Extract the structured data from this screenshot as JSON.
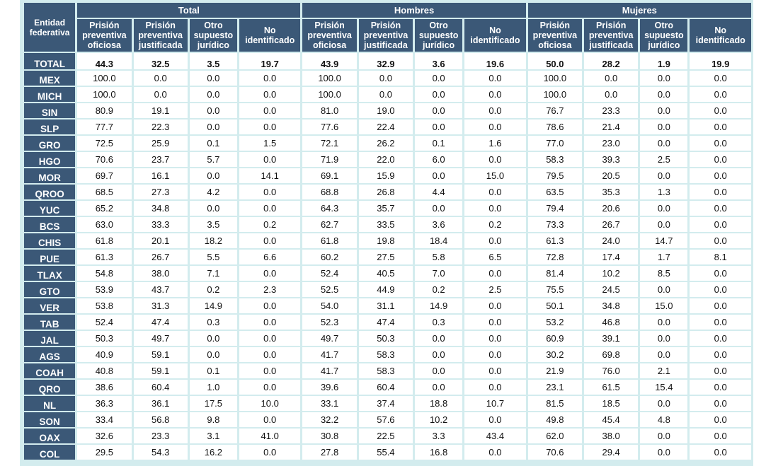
{
  "header": {
    "entity_label": "Entidad\nfederativa",
    "groups": [
      "Total",
      "Hombres",
      "Mujeres"
    ],
    "subcolumns": [
      "Prisión\npreventiva\noficiosa",
      "Prisión\npreventiva\njustificada",
      "Otro\nsupuesto\njurídico",
      "No\nidentificado"
    ]
  },
  "rows": [
    {
      "state": "TOTAL",
      "values": [
        "44.3",
        "32.5",
        "3.5",
        "19.7",
        "43.9",
        "32.9",
        "3.6",
        "19.6",
        "50.0",
        "28.2",
        "1.9",
        "19.9"
      ]
    },
    {
      "state": "MEX",
      "values": [
        "100.0",
        "0.0",
        "0.0",
        "0.0",
        "100.0",
        "0.0",
        "0.0",
        "0.0",
        "100.0",
        "0.0",
        "0.0",
        "0.0"
      ]
    },
    {
      "state": "MICH",
      "values": [
        "100.0",
        "0.0",
        "0.0",
        "0.0",
        "100.0",
        "0.0",
        "0.0",
        "0.0",
        "100.0",
        "0.0",
        "0.0",
        "0.0"
      ]
    },
    {
      "state": "SIN",
      "values": [
        "80.9",
        "19.1",
        "0.0",
        "0.0",
        "81.0",
        "19.0",
        "0.0",
        "0.0",
        "76.7",
        "23.3",
        "0.0",
        "0.0"
      ]
    },
    {
      "state": "SLP",
      "values": [
        "77.7",
        "22.3",
        "0.0",
        "0.0",
        "77.6",
        "22.4",
        "0.0",
        "0.0",
        "78.6",
        "21.4",
        "0.0",
        "0.0"
      ]
    },
    {
      "state": "GRO",
      "values": [
        "72.5",
        "25.9",
        "0.1",
        "1.5",
        "72.1",
        "26.2",
        "0.1",
        "1.6",
        "77.0",
        "23.0",
        "0.0",
        "0.0"
      ]
    },
    {
      "state": "HGO",
      "values": [
        "70.6",
        "23.7",
        "5.7",
        "0.0",
        "71.9",
        "22.0",
        "6.0",
        "0.0",
        "58.3",
        "39.3",
        "2.5",
        "0.0"
      ]
    },
    {
      "state": "MOR",
      "values": [
        "69.7",
        "16.1",
        "0.0",
        "14.1",
        "69.1",
        "15.9",
        "0.0",
        "15.0",
        "79.5",
        "20.5",
        "0.0",
        "0.0"
      ]
    },
    {
      "state": "QROO",
      "values": [
        "68.5",
        "27.3",
        "4.2",
        "0.0",
        "68.8",
        "26.8",
        "4.4",
        "0.0",
        "63.5",
        "35.3",
        "1.3",
        "0.0"
      ]
    },
    {
      "state": "YUC",
      "values": [
        "65.2",
        "34.8",
        "0.0",
        "0.0",
        "64.3",
        "35.7",
        "0.0",
        "0.0",
        "79.4",
        "20.6",
        "0.0",
        "0.0"
      ]
    },
    {
      "state": "BCS",
      "values": [
        "63.0",
        "33.3",
        "3.5",
        "0.2",
        "62.7",
        "33.5",
        "3.6",
        "0.2",
        "73.3",
        "26.7",
        "0.0",
        "0.0"
      ]
    },
    {
      "state": "CHIS",
      "values": [
        "61.8",
        "20.1",
        "18.2",
        "0.0",
        "61.8",
        "19.8",
        "18.4",
        "0.0",
        "61.3",
        "24.0",
        "14.7",
        "0.0"
      ]
    },
    {
      "state": "PUE",
      "values": [
        "61.3",
        "26.7",
        "5.5",
        "6.6",
        "60.2",
        "27.5",
        "5.8",
        "6.5",
        "72.8",
        "17.4",
        "1.7",
        "8.1"
      ]
    },
    {
      "state": "TLAX",
      "values": [
        "54.8",
        "38.0",
        "7.1",
        "0.0",
        "52.4",
        "40.5",
        "7.0",
        "0.0",
        "81.4",
        "10.2",
        "8.5",
        "0.0"
      ]
    },
    {
      "state": "GTO",
      "values": [
        "53.9",
        "43.7",
        "0.2",
        "2.3",
        "52.5",
        "44.9",
        "0.2",
        "2.5",
        "75.5",
        "24.5",
        "0.0",
        "0.0"
      ]
    },
    {
      "state": "VER",
      "values": [
        "53.8",
        "31.3",
        "14.9",
        "0.0",
        "54.0",
        "31.1",
        "14.9",
        "0.0",
        "50.1",
        "34.8",
        "15.0",
        "0.0"
      ]
    },
    {
      "state": "TAB",
      "values": [
        "52.4",
        "47.4",
        "0.3",
        "0.0",
        "52.3",
        "47.4",
        "0.3",
        "0.0",
        "53.2",
        "46.8",
        "0.0",
        "0.0"
      ]
    },
    {
      "state": "JAL",
      "values": [
        "50.3",
        "49.7",
        "0.0",
        "0.0",
        "49.7",
        "50.3",
        "0.0",
        "0.0",
        "60.9",
        "39.1",
        "0.0",
        "0.0"
      ]
    },
    {
      "state": "AGS",
      "values": [
        "40.9",
        "59.1",
        "0.0",
        "0.0",
        "41.7",
        "58.3",
        "0.0",
        "0.0",
        "30.2",
        "69.8",
        "0.0",
        "0.0"
      ]
    },
    {
      "state": "COAH",
      "values": [
        "40.8",
        "59.1",
        "0.1",
        "0.0",
        "41.7",
        "58.3",
        "0.0",
        "0.0",
        "21.9",
        "76.0",
        "2.1",
        "0.0"
      ]
    },
    {
      "state": "QRO",
      "values": [
        "38.6",
        "60.4",
        "1.0",
        "0.0",
        "39.6",
        "60.4",
        "0.0",
        "0.0",
        "23.1",
        "61.5",
        "15.4",
        "0.0"
      ]
    },
    {
      "state": "NL",
      "values": [
        "36.3",
        "36.1",
        "17.5",
        "10.0",
        "33.1",
        "37.4",
        "18.8",
        "10.7",
        "81.5",
        "18.5",
        "0.0",
        "0.0"
      ]
    },
    {
      "state": "SON",
      "values": [
        "33.4",
        "56.8",
        "9.8",
        "0.0",
        "32.2",
        "57.6",
        "10.2",
        "0.0",
        "49.8",
        "45.4",
        "4.8",
        "0.0"
      ]
    },
    {
      "state": "OAX",
      "values": [
        "32.6",
        "23.3",
        "3.1",
        "41.0",
        "30.8",
        "22.5",
        "3.3",
        "43.4",
        "62.0",
        "38.0",
        "0.0",
        "0.0"
      ]
    },
    {
      "state": "COL",
      "values": [
        "29.5",
        "54.3",
        "16.2",
        "0.0",
        "27.8",
        "55.4",
        "16.8",
        "0.0",
        "70.6",
        "29.4",
        "0.0",
        "0.0"
      ]
    }
  ]
}
